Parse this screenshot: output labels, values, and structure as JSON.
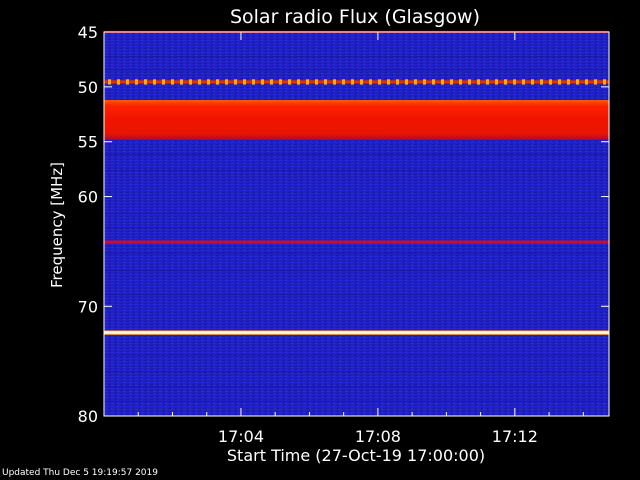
{
  "chart_data": {
    "type": "heatmap",
    "title": "Solar radio Flux (Glasgow)",
    "ylabel": "Frequency [MHz]",
    "xlabel": "Start Time (27-Oct-19 17:00:00)",
    "ylim": [
      45,
      80
    ],
    "y_ticks": [
      45,
      50,
      55,
      60,
      70,
      80
    ],
    "xlim_minutes": [
      0,
      14.75
    ],
    "x_ticks": [
      {
        "minute": 4,
        "label": "17:04"
      },
      {
        "minute": 8,
        "label": "17:08"
      },
      {
        "minute": 12,
        "label": "17:12"
      }
    ],
    "background_color": "#2020c8",
    "bands": [
      {
        "from_mhz": 44.9,
        "to_mhz": 45.1,
        "intensity": "medium",
        "color": "#c80a28"
      },
      {
        "from_mhz": 49.4,
        "to_mhz": 49.7,
        "intensity": "medium-high",
        "color": "#e03010"
      },
      {
        "from_mhz": 51.2,
        "to_mhz": 54.8,
        "intensity": "high",
        "color": "#ff1a00"
      },
      {
        "from_mhz": 64.0,
        "to_mhz": 64.3,
        "intensity": "medium",
        "color": "#c01038"
      },
      {
        "from_mhz": 72.2,
        "to_mhz": 72.6,
        "intensity": "saturated",
        "color": "#fff4b0"
      }
    ]
  },
  "footer": {
    "updated": "Updated Thu Dec  5 19:19:57 2019"
  }
}
